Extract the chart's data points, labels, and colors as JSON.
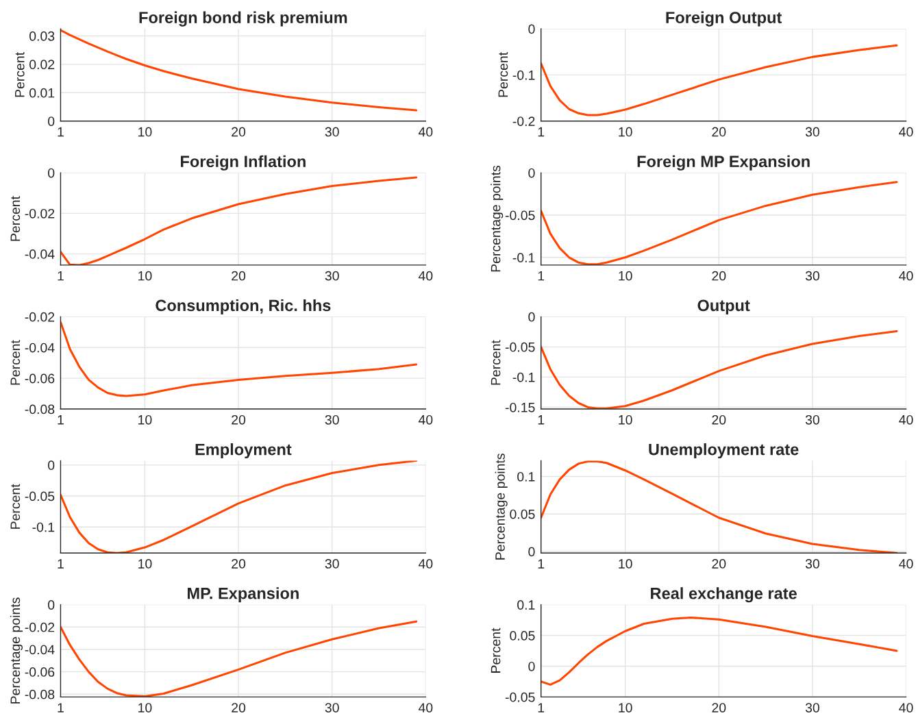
{
  "chart_data": [
    {
      "type": "line",
      "title": "Foreign bond risk premium",
      "ylabel": "Percent",
      "x": [
        1,
        2,
        3,
        4,
        5,
        6,
        7,
        8,
        10,
        12,
        15,
        20,
        25,
        30,
        35,
        39
      ],
      "series": [
        {
          "color": "#ff4500",
          "values": [
            0.032,
            0.0303,
            0.0288,
            0.0273,
            0.0259,
            0.0245,
            0.0232,
            0.0219,
            0.0196,
            0.0176,
            0.015,
            0.0113,
            0.0086,
            0.0065,
            0.0049,
            0.0038
          ]
        }
      ],
      "xlim": [
        1,
        40
      ],
      "xticks": [
        1,
        10,
        20,
        30,
        40
      ],
      "ylim": [
        0,
        0.0325
      ],
      "yticks": [
        0,
        0.01,
        0.02,
        0.03
      ],
      "grid": true
    },
    {
      "type": "line",
      "title": "Foreign Output",
      "ylabel": "Percent",
      "x": [
        1,
        2,
        3,
        4,
        5,
        6,
        7,
        8,
        10,
        12,
        15,
        20,
        25,
        30,
        35,
        39
      ],
      "series": [
        {
          "color": "#ff4500",
          "values": [
            -0.075,
            -0.124,
            -0.155,
            -0.174,
            -0.183,
            -0.187,
            -0.187,
            -0.184,
            -0.175,
            -0.163,
            -0.143,
            -0.11,
            -0.083,
            -0.061,
            -0.046,
            -0.036
          ]
        }
      ],
      "xlim": [
        1,
        40
      ],
      "xticks": [
        1,
        10,
        20,
        30,
        40
      ],
      "ylim": [
        -0.2,
        0
      ],
      "yticks": [
        -0.2,
        -0.1,
        0
      ],
      "grid": true
    },
    {
      "type": "line",
      "title": "Foreign Inflation",
      "ylabel": "Percent",
      "x": [
        1,
        2,
        3,
        4,
        5,
        6,
        7,
        8,
        10,
        12,
        15,
        20,
        25,
        30,
        35,
        39
      ],
      "series": [
        {
          "color": "#ff4500",
          "values": [
            -0.039,
            -0.0453,
            -0.0455,
            -0.0445,
            -0.043,
            -0.041,
            -0.039,
            -0.037,
            -0.0327,
            -0.028,
            -0.0225,
            -0.0155,
            -0.0105,
            -0.0065,
            -0.004,
            -0.0023
          ]
        }
      ],
      "xlim": [
        1,
        40
      ],
      "xticks": [
        1,
        10,
        20,
        30,
        40
      ],
      "ylim": [
        -0.0455,
        0
      ],
      "yticks": [
        -0.04,
        -0.02,
        0
      ],
      "grid": true
    },
    {
      "type": "line",
      "title": "Foreign MP Expansion",
      "ylabel": "Percentage points",
      "x": [
        1,
        2,
        3,
        4,
        5,
        6,
        7,
        8,
        10,
        12,
        15,
        20,
        25,
        30,
        35,
        39
      ],
      "series": [
        {
          "color": "#ff4500",
          "values": [
            -0.045,
            -0.072,
            -0.089,
            -0.1,
            -0.106,
            -0.108,
            -0.108,
            -0.106,
            -0.1,
            -0.092,
            -0.079,
            -0.056,
            -0.039,
            -0.026,
            -0.017,
            -0.011
          ]
        }
      ],
      "xlim": [
        1,
        40
      ],
      "xticks": [
        1,
        10,
        20,
        30,
        40
      ],
      "ylim": [
        -0.109,
        0
      ],
      "yticks": [
        -0.1,
        -0.05,
        0
      ],
      "grid": true
    },
    {
      "type": "line",
      "title": "Consumption, Ric. hhs",
      "ylabel": "Percent",
      "x": [
        1,
        2,
        3,
        4,
        5,
        6,
        7,
        8,
        10,
        12,
        15,
        20,
        25,
        30,
        35,
        39
      ],
      "series": [
        {
          "color": "#ff4500",
          "values": [
            -0.0235,
            -0.041,
            -0.0525,
            -0.061,
            -0.066,
            -0.0695,
            -0.071,
            -0.0715,
            -0.0705,
            -0.068,
            -0.0645,
            -0.061,
            -0.0585,
            -0.0565,
            -0.054,
            -0.051
          ]
        }
      ],
      "xlim": [
        1,
        40
      ],
      "xticks": [
        1,
        10,
        20,
        30,
        40
      ],
      "ylim": [
        -0.08,
        -0.02
      ],
      "yticks": [
        -0.08,
        -0.06,
        -0.04,
        -0.02
      ],
      "grid": true
    },
    {
      "type": "line",
      "title": "Output",
      "ylabel": "Percent",
      "x": [
        1,
        2,
        3,
        4,
        5,
        6,
        7,
        8,
        10,
        12,
        15,
        20,
        25,
        30,
        35,
        39
      ],
      "series": [
        {
          "color": "#ff4500",
          "values": [
            -0.05,
            -0.087,
            -0.113,
            -0.131,
            -0.143,
            -0.15,
            -0.152,
            -0.152,
            -0.148,
            -0.139,
            -0.122,
            -0.09,
            -0.064,
            -0.045,
            -0.032,
            -0.024
          ]
        }
      ],
      "xlim": [
        1,
        40
      ],
      "xticks": [
        1,
        10,
        20,
        30,
        40
      ],
      "ylim": [
        -0.153,
        0
      ],
      "yticks": [
        -0.15,
        -0.1,
        -0.05,
        0
      ],
      "grid": true
    },
    {
      "type": "line",
      "title": "Employment",
      "ylabel": "Percent",
      "x": [
        1,
        2,
        3,
        4,
        5,
        6,
        7,
        8,
        10,
        12,
        15,
        20,
        25,
        30,
        35,
        39
      ],
      "series": [
        {
          "color": "#ff4500",
          "values": [
            -0.048,
            -0.084,
            -0.109,
            -0.126,
            -0.136,
            -0.141,
            -0.142,
            -0.141,
            -0.133,
            -0.121,
            -0.099,
            -0.062,
            -0.033,
            -0.013,
            0.0,
            0.007
          ]
        }
      ],
      "xlim": [
        1,
        40
      ],
      "xticks": [
        1,
        10,
        20,
        30,
        40
      ],
      "ylim": [
        -0.142,
        0.007
      ],
      "yticks": [
        -0.1,
        -0.05,
        0
      ],
      "grid": true
    },
    {
      "type": "line",
      "title": "Unemployment rate",
      "ylabel": "Percentage points",
      "x": [
        1,
        2,
        3,
        4,
        5,
        6,
        7,
        8,
        10,
        12,
        15,
        20,
        25,
        30,
        35,
        39
      ],
      "series": [
        {
          "color": "#ff4500",
          "values": [
            0.045,
            0.076,
            0.096,
            0.109,
            0.117,
            0.12,
            0.12,
            0.118,
            0.108,
            0.096,
            0.077,
            0.045,
            0.024,
            0.01,
            0.002,
            -0.002
          ]
        }
      ],
      "xlim": [
        1,
        40
      ],
      "xticks": [
        1,
        10,
        20,
        30,
        40
      ],
      "ylim": [
        -0.002,
        0.121
      ],
      "yticks": [
        0,
        0.05,
        0.1
      ],
      "grid": true
    },
    {
      "type": "line",
      "title": "MP. Expansion",
      "ylabel": "Percentage points",
      "x": [
        1,
        2,
        3,
        4,
        5,
        6,
        7,
        8,
        10,
        12,
        15,
        20,
        25,
        30,
        35,
        39
      ],
      "series": [
        {
          "color": "#ff4500",
          "values": [
            -0.02,
            -0.036,
            -0.049,
            -0.06,
            -0.069,
            -0.075,
            -0.079,
            -0.081,
            -0.082,
            -0.0795,
            -0.072,
            -0.058,
            -0.043,
            -0.031,
            -0.021,
            -0.015
          ]
        }
      ],
      "xlim": [
        1,
        40
      ],
      "xticks": [
        1,
        10,
        20,
        30,
        40
      ],
      "ylim": [
        -0.0825,
        0
      ],
      "yticks": [
        -0.08,
        -0.06,
        -0.04,
        -0.02,
        0
      ],
      "grid": true
    },
    {
      "type": "line",
      "title": "Real exchange rate",
      "ylabel": "Percent",
      "x": [
        1,
        2,
        3,
        4,
        5,
        6,
        7,
        8,
        10,
        12,
        15,
        17,
        20,
        25,
        30,
        35,
        39
      ],
      "series": [
        {
          "color": "#ff4500",
          "values": [
            -0.025,
            -0.03,
            -0.023,
            -0.01,
            0.005,
            0.019,
            0.031,
            0.041,
            0.057,
            0.069,
            0.077,
            0.079,
            0.076,
            0.064,
            0.049,
            0.036,
            0.025
          ]
        }
      ],
      "xlim": [
        1,
        40
      ],
      "xticks": [
        1,
        10,
        20,
        30,
        40
      ],
      "ylim": [
        -0.05,
        0.1
      ],
      "yticks": [
        -0.05,
        0,
        0.05,
        0.1
      ],
      "grid": true
    }
  ]
}
